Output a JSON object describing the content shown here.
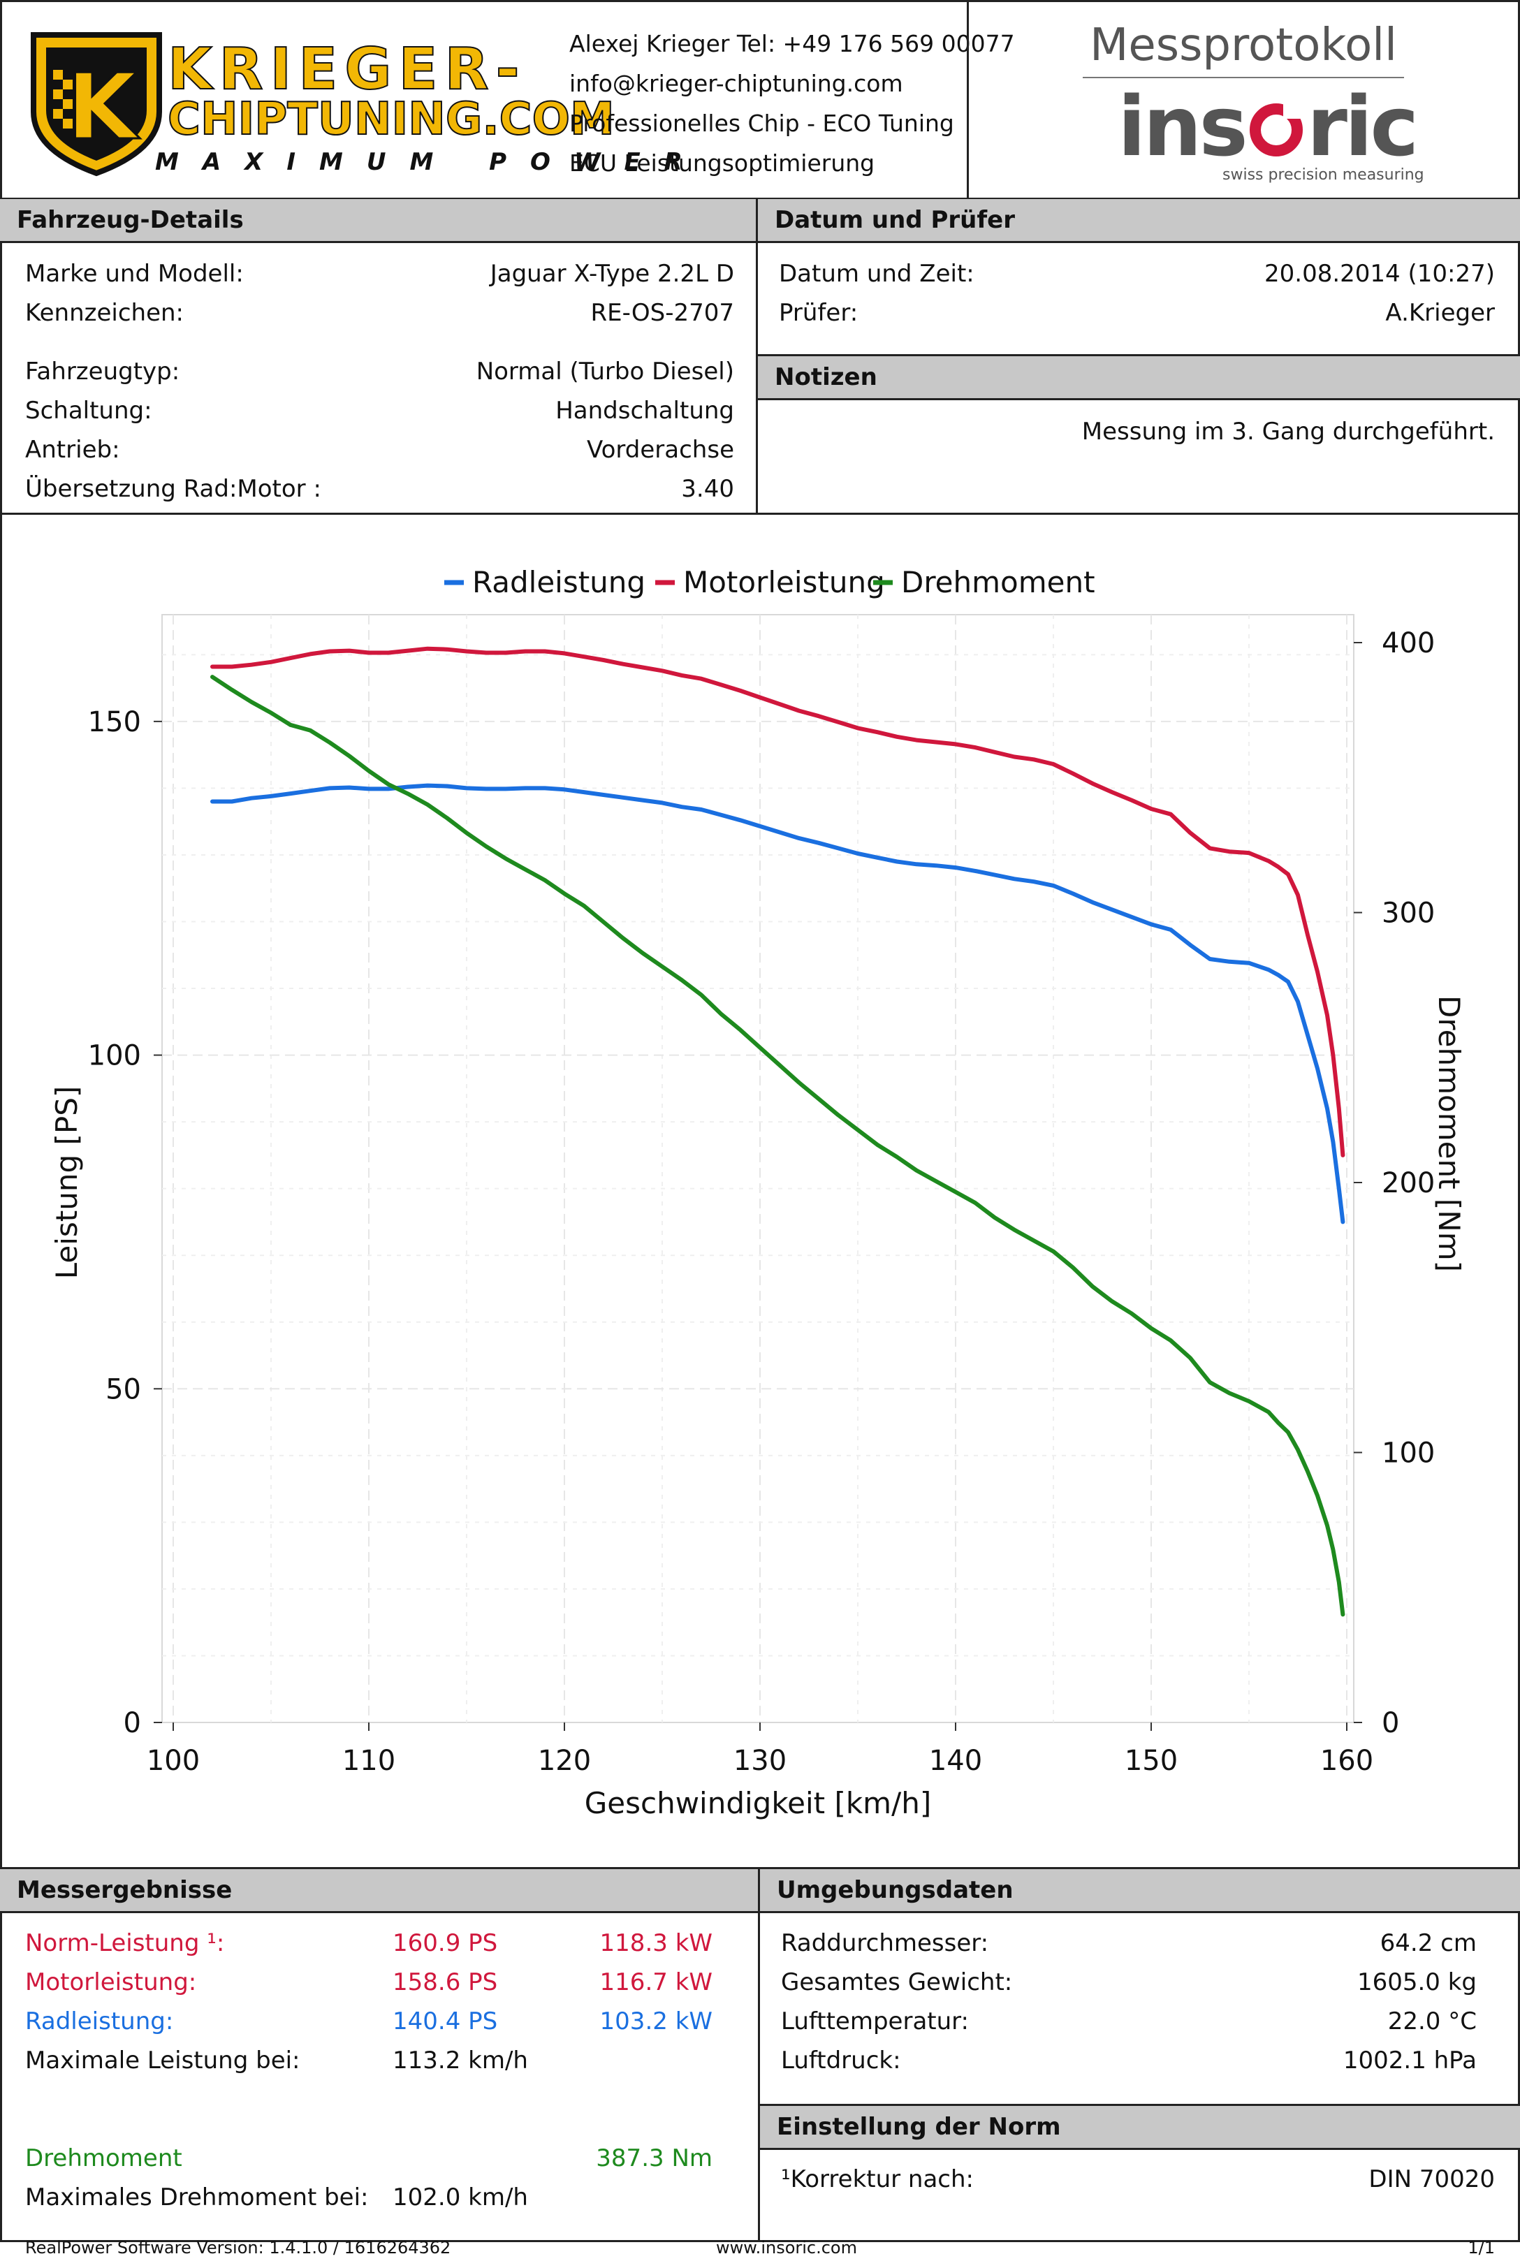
{
  "header": {
    "logo_line1": "KRIEGER-",
    "logo_line2": "CHIPTUNING.COM",
    "logo_tagline": "MAXIMUM POWER",
    "logo_letter": "K",
    "contact": [
      "Alexej Krieger Tel: +49 176 569 00077",
      "info@krieger-chiptuning.com",
      "Professionelles Chip - ECO Tuning",
      "ECU Leistungsoptimierung"
    ],
    "protocol_title": "Messprotokoll",
    "brand_name_a": "ins",
    "brand_name_b": "ric",
    "brand_slogan": "swiss precision measuring"
  },
  "vehicle": {
    "title": "Fahrzeug-Details",
    "rows": [
      {
        "label": "Marke und Modell:",
        "value": "Jaguar X-Type 2.2L D"
      },
      {
        "label": "Kennzeichen:",
        "value": "RE-OS-2707"
      },
      {
        "label": "Fahrzeugtyp:",
        "value": "Normal (Turbo Diesel)"
      },
      {
        "label": "Schaltung:",
        "value": "Handschaltung"
      },
      {
        "label": "Antrieb:",
        "value": "Vorderachse"
      },
      {
        "label": "Übersetzung Rad:Motor :",
        "value": "3.40"
      }
    ]
  },
  "date": {
    "title": "Datum und Prüfer",
    "rows": [
      {
        "label": "Datum und Zeit:",
        "value": "20.08.2014 (10:27)"
      },
      {
        "label": "Prüfer:",
        "value": "A.Krieger"
      }
    ]
  },
  "notes": {
    "title": "Notizen",
    "text": "Messung im 3. Gang durchgeführt."
  },
  "colors": {
    "rad": "#1a6fe0",
    "motor": "#d0173c",
    "torque": "#1e8a1e"
  },
  "chart_data": {
    "type": "line",
    "xlabel": "Geschwindigkeit [km/h]",
    "ylabel": "Leistung [PS]",
    "y2label": "Drehmoment [Nm]",
    "xlim": [
      100,
      160
    ],
    "ylim": [
      0,
      166
    ],
    "y2lim": [
      0,
      400
    ],
    "xticks": [
      100,
      110,
      120,
      130,
      140,
      150,
      160
    ],
    "yticks": [
      0,
      50,
      100,
      150
    ],
    "y2ticks": [
      0,
      100,
      200,
      300,
      400
    ],
    "legend": [
      "Radleistung",
      "Motorleistung",
      "Drehmoment"
    ],
    "series": [
      {
        "name": "Radleistung",
        "axis": "left",
        "color": "#1a6fe0",
        "x": [
          102,
          103,
          104,
          105,
          106,
          107,
          108,
          109,
          110,
          111,
          112,
          113,
          114,
          115,
          116,
          117,
          118,
          119,
          120,
          121,
          122,
          123,
          124,
          125,
          126,
          127,
          128,
          129,
          130,
          131,
          132,
          133,
          134,
          135,
          136,
          137,
          138,
          139,
          140,
          141,
          142,
          143,
          144,
          145,
          146,
          147,
          148,
          149,
          150,
          151,
          152,
          153,
          154,
          155,
          156,
          156.5,
          157,
          157.5,
          158,
          158.5,
          159,
          159.3,
          159.6,
          159.8
        ],
        "y": [
          138,
          138,
          138.5,
          138.8,
          139.2,
          139.6,
          140,
          140.1,
          139.9,
          139.9,
          140.2,
          140.4,
          140.3,
          140,
          139.9,
          139.9,
          140,
          140,
          139.8,
          139.4,
          139,
          138.6,
          138.2,
          137.8,
          137.2,
          136.8,
          136,
          135.2,
          134.3,
          133.4,
          132.5,
          131.8,
          131,
          130.2,
          129.6,
          129,
          128.6,
          128.4,
          128.1,
          127.6,
          127,
          126.4,
          126,
          125.4,
          124.2,
          122.9,
          121.8,
          120.7,
          119.6,
          118.8,
          116.5,
          114.4,
          114,
          113.8,
          112.8,
          112,
          111,
          108,
          103,
          98,
          92,
          87,
          80,
          75
        ]
      },
      {
        "name": "Motorleistung",
        "axis": "left",
        "color": "#d0173c",
        "x": [
          102,
          103,
          104,
          105,
          106,
          107,
          108,
          109,
          110,
          111,
          112,
          113,
          114,
          115,
          116,
          117,
          118,
          119,
          120,
          121,
          122,
          123,
          124,
          125,
          126,
          127,
          128,
          129,
          130,
          131,
          132,
          133,
          134,
          135,
          136,
          137,
          138,
          139,
          140,
          141,
          142,
          143,
          144,
          145,
          146,
          147,
          148,
          149,
          150,
          151,
          152,
          153,
          154,
          155,
          156,
          156.5,
          157,
          157.5,
          158,
          158.5,
          159,
          159.3,
          159.6,
          159.8
        ],
        "y": [
          158.2,
          158.2,
          158.5,
          158.9,
          159.5,
          160.1,
          160.5,
          160.6,
          160.3,
          160.3,
          160.6,
          160.9,
          160.8,
          160.5,
          160.3,
          160.3,
          160.5,
          160.5,
          160.2,
          159.7,
          159.2,
          158.6,
          158.1,
          157.6,
          156.9,
          156.4,
          155.5,
          154.6,
          153.6,
          152.6,
          151.6,
          150.8,
          149.9,
          149,
          148.4,
          147.7,
          147.2,
          146.9,
          146.6,
          146.1,
          145.4,
          144.7,
          144.3,
          143.6,
          142.2,
          140.7,
          139.4,
          138.2,
          136.9,
          136.1,
          133.3,
          131,
          130.5,
          130.3,
          129.1,
          128.2,
          127.1,
          124,
          118,
          112.5,
          106,
          100,
          92,
          85
        ]
      },
      {
        "name": "Drehmoment",
        "axis": "right",
        "color": "#1e8a1e",
        "x": [
          102,
          103,
          104,
          105,
          106,
          107,
          108,
          109,
          110,
          111,
          112,
          113,
          114,
          115,
          116,
          117,
          118,
          119,
          120,
          121,
          122,
          123,
          124,
          125,
          126,
          127,
          128,
          129,
          130,
          131,
          132,
          133,
          134,
          135,
          136,
          137,
          138,
          139,
          140,
          141,
          142,
          143,
          144,
          145,
          146,
          147,
          148,
          149,
          150,
          151,
          152,
          153,
          154,
          155,
          156,
          156.5,
          157,
          157.5,
          158,
          158.5,
          159,
          159.3,
          159.6,
          159.8
        ],
        "y": [
          387.3,
          382.5,
          378,
          374,
          369.5,
          367.5,
          363,
          358,
          352.5,
          347.5,
          344,
          340,
          335,
          329.5,
          324.5,
          320,
          316,
          312,
          307,
          302.5,
          296.5,
          290.5,
          285,
          280,
          275,
          269.5,
          262.5,
          256.5,
          250,
          243.5,
          237,
          231,
          225,
          219.5,
          214,
          209.5,
          204.5,
          200.5,
          196.5,
          192.5,
          187,
          182.5,
          178.5,
          174.5,
          168.5,
          161.5,
          156,
          151.5,
          146,
          141.5,
          135,
          126,
          122,
          119,
          115,
          111,
          107.5,
          101,
          93,
          84,
          73,
          64,
          52,
          40
        ]
      }
    ]
  },
  "results": {
    "title": "Messergebnisse",
    "norm": {
      "label": "Norm-Leistung ¹:",
      "ps": "160.9 PS",
      "kw": "118.3 kW"
    },
    "motor": {
      "label": "Motorleistung:",
      "ps": "158.6 PS",
      "kw": "116.7 kW"
    },
    "rad": {
      "label": "Radleistung:",
      "ps": "140.4 PS",
      "kw": "103.2 kW"
    },
    "maxpower": {
      "label": "Maximale Leistung bei:",
      "value": "113.2 km/h"
    },
    "torque": {
      "label": "Drehmoment",
      "value": "387.3 Nm"
    },
    "maxtorque": {
      "label": "Maximales Drehmoment bei:",
      "value": "102.0 km/h"
    }
  },
  "env": {
    "title": "Umgebungsdaten",
    "rows": [
      {
        "label": "Raddurchmesser:",
        "value": "64.2 cm"
      },
      {
        "label": "Gesamtes Gewicht:",
        "value": "1605.0 kg"
      },
      {
        "label": "Lufttemperatur:",
        "value": "22.0 °C"
      },
      {
        "label": "Luftdruck:",
        "value": "1002.1 hPa"
      }
    ]
  },
  "norm": {
    "title": "Einstellung der Norm",
    "label": "¹Korrektur nach:",
    "value": "DIN 70020"
  },
  "footer": {
    "version": "RealPower Software Version: 1.4.1.0 / 1616264362",
    "url": "www.insoric.com",
    "page": "1/1"
  }
}
